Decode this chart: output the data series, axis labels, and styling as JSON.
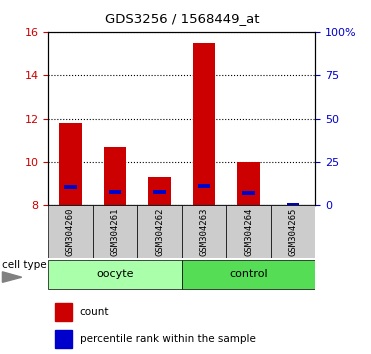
{
  "title": "GDS3256 / 1568449_at",
  "samples": [
    "GSM304260",
    "GSM304261",
    "GSM304262",
    "GSM304263",
    "GSM304264",
    "GSM304265"
  ],
  "red_values": [
    11.8,
    10.7,
    9.3,
    15.5,
    10.0,
    8.0
  ],
  "blue_values": [
    8.85,
    8.62,
    8.62,
    8.9,
    8.55,
    8.0
  ],
  "y_min": 8,
  "y_max": 16,
  "y_ticks": [
    8,
    10,
    12,
    14,
    16
  ],
  "right_y_ticks": [
    0,
    25,
    50,
    75,
    100
  ],
  "right_y_labels": [
    "0",
    "25",
    "50",
    "75",
    "100%"
  ],
  "groups": [
    {
      "label": "oocyte",
      "indices": [
        0,
        1,
        2
      ],
      "color": "#aaffaa"
    },
    {
      "label": "control",
      "indices": [
        3,
        4,
        5
      ],
      "color": "#55dd55"
    }
  ],
  "bar_width": 0.5,
  "bar_color_red": "#cc0000",
  "bar_color_blue": "#0000cc",
  "tick_label_color_left": "#cc0000",
  "tick_label_color_right": "#0000cc",
  "xlabel_area_color": "#cccccc",
  "cell_type_label": "cell type",
  "legend_count": "count",
  "legend_pct": "percentile rank within the sample"
}
